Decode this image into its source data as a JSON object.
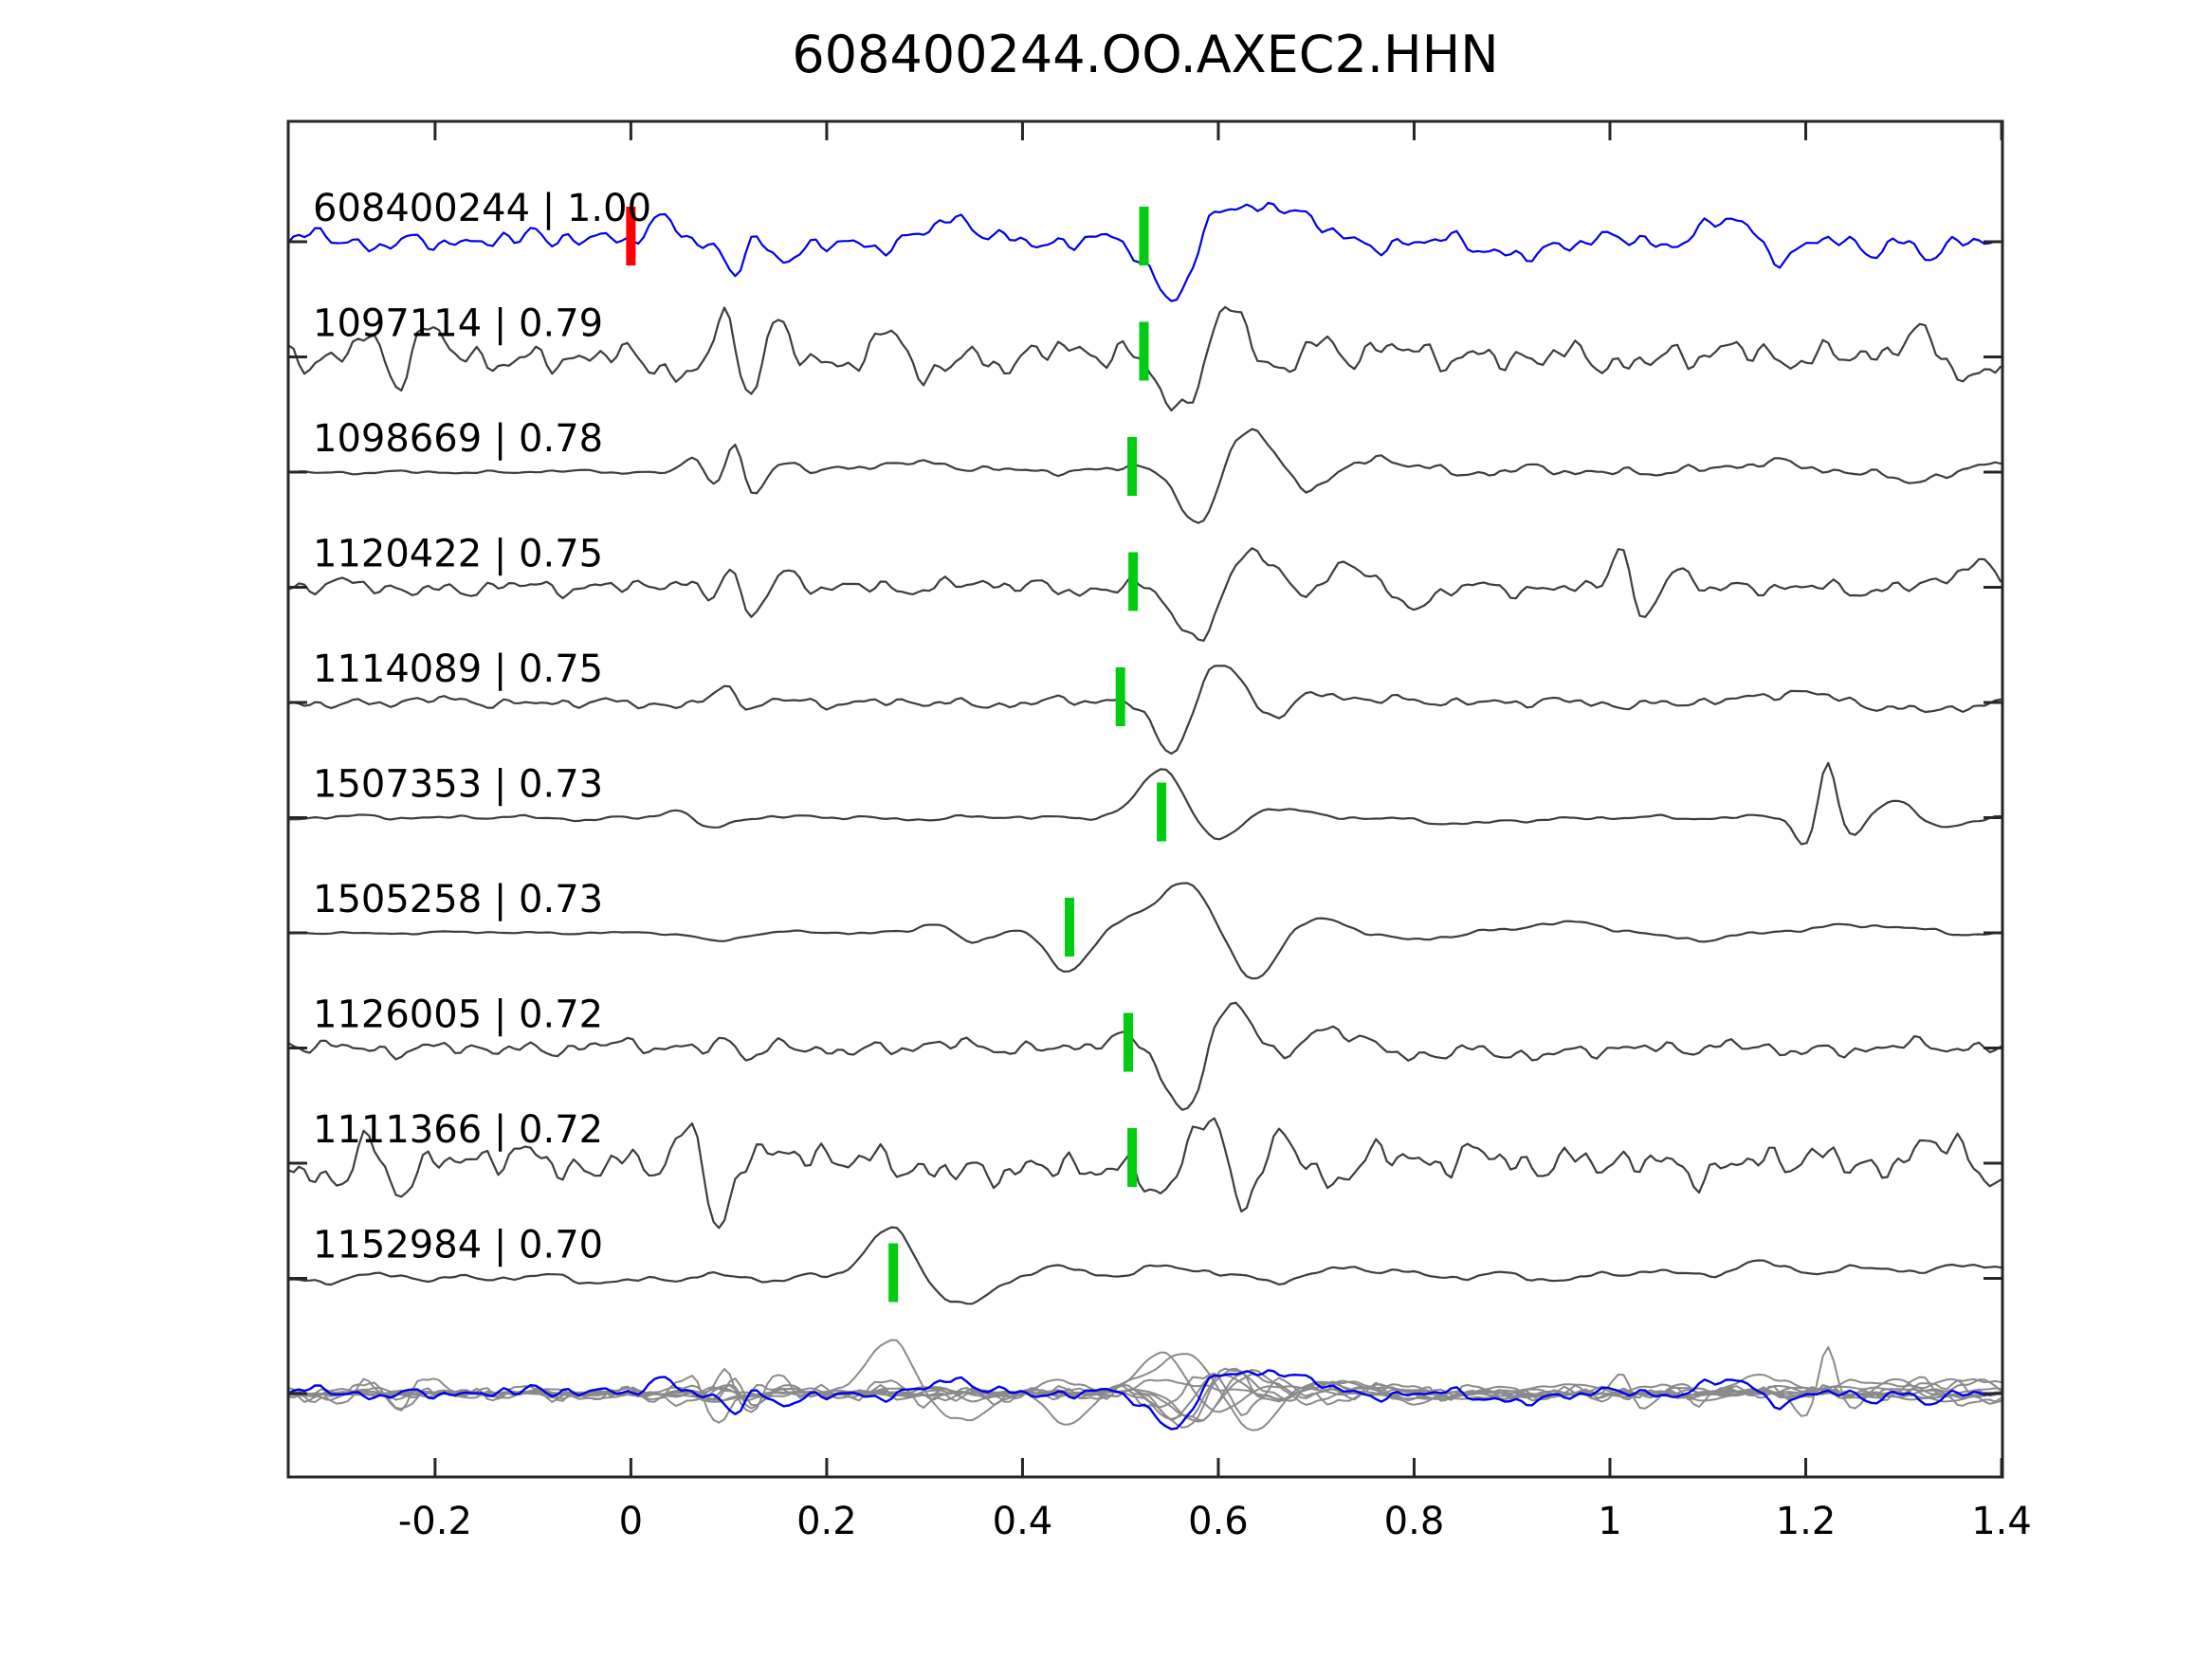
{
  "chart_data": {
    "type": "line",
    "title": "608400244.OO.AXEC2.HHN",
    "xlabel": "",
    "ylabel": "",
    "xlim": [
      -0.35,
      1.401
    ],
    "grid": false,
    "legend": "none",
    "x_ticks": [
      {
        "value": -0.2,
        "label": "-0.2"
      },
      {
        "value": 0,
        "label": "0"
      },
      {
        "value": 0.2,
        "label": "0.2"
      },
      {
        "value": 0.4,
        "label": "0.4"
      },
      {
        "value": 0.6,
        "label": "0.6"
      },
      {
        "value": 0.8,
        "label": "0.8"
      },
      {
        "value": 1,
        "label": "1"
      },
      {
        "value": 1.2,
        "label": "1.2"
      },
      {
        "value": 1.4,
        "label": "1.4"
      }
    ],
    "colors": {
      "template_trace": "#0000ee",
      "detection_trace": "#3d3d3d",
      "overlay_trace": "#8a8a8a",
      "pick_marker": "#00cc11",
      "origin_marker": "#ff0000",
      "axis": "#262626",
      "text": "#000000"
    },
    "traces": [
      {
        "id": "608400244",
        "cc": "1.00",
        "label": "608400244 | 1.00",
        "color": "#0000ee",
        "is_template": true,
        "pick_x": 0.524,
        "origin_marker_x": 0.0,
        "seed": 11,
        "noise": 10,
        "hf": 0.9,
        "overlay_scale": 0.6,
        "events": [
          [
            -0.1,
            26,
            0.012
          ],
          [
            0.035,
            20,
            0.02
          ],
          [
            0.107,
            -30,
            0.013
          ],
          [
            0.155,
            -18,
            0.02
          ],
          [
            0.335,
            20,
            0.03
          ],
          [
            0.555,
            -58,
            0.028
          ],
          [
            0.605,
            42,
            0.028
          ],
          [
            0.655,
            24,
            0.03
          ],
          [
            0.7,
            22,
            0.035
          ],
          [
            0.75,
            -10,
            0.03
          ],
          [
            0.92,
            -14,
            0.03
          ],
          [
            1.13,
            24,
            0.035
          ],
          [
            1.175,
            -26,
            0.028
          ],
          [
            1.22,
            14,
            0.03
          ],
          [
            1.27,
            -16,
            0.02
          ],
          [
            1.33,
            -14,
            0.02
          ]
        ]
      },
      {
        "id": "1097114",
        "cc": "0.79",
        "label": "1097114 | 0.79",
        "color": "#3d3d3d",
        "is_template": false,
        "pick_x": 0.524,
        "seed": 22,
        "noise": 14,
        "hf": 1,
        "overlay_scale": 0.5,
        "events": [
          [
            -0.27,
            25,
            0.015
          ],
          [
            -0.24,
            -28,
            0.015
          ],
          [
            -0.21,
            22,
            0.015
          ],
          [
            0.055,
            -25,
            0.015
          ],
          [
            0.1,
            42,
            0.016
          ],
          [
            0.12,
            -52,
            0.016
          ],
          [
            0.145,
            30,
            0.015
          ],
          [
            0.27,
            30,
            0.018
          ],
          [
            0.3,
            -25,
            0.018
          ],
          [
            0.56,
            -52,
            0.025
          ],
          [
            0.615,
            46,
            0.028
          ],
          [
            0.66,
            -18,
            0.025
          ],
          [
            0.7,
            18,
            0.03
          ],
          [
            1.32,
            24,
            0.03
          ],
          [
            1.37,
            -18,
            0.025
          ]
        ]
      },
      {
        "id": "1098669",
        "cc": "0.78",
        "label": "1098669 | 0.78",
        "color": "#3d3d3d",
        "is_template": false,
        "pick_x": 0.512,
        "seed": 33,
        "noise": 5,
        "hf": 0.7,
        "overlay_scale": 0.55,
        "env": [
          [
            -0.35,
            0.4
          ],
          [
            0.05,
            0.4
          ],
          [
            0.13,
            0.9
          ],
          [
            0.55,
            0.9
          ],
          [
            0.65,
            1.4
          ],
          [
            1.4,
            1.2
          ]
        ],
        "events": [
          [
            0.065,
            18,
            0.015
          ],
          [
            0.085,
            -16,
            0.015
          ],
          [
            0.105,
            32,
            0.012
          ],
          [
            0.125,
            -26,
            0.014
          ],
          [
            0.16,
            12,
            0.02
          ],
          [
            0.3,
            8,
            0.08
          ],
          [
            0.52,
            9,
            0.04
          ],
          [
            0.578,
            -62,
            0.027
          ],
          [
            0.633,
            46,
            0.033
          ],
          [
            0.69,
            -16,
            0.04
          ],
          [
            0.77,
            14,
            0.05
          ],
          [
            1.16,
            14,
            0.045
          ],
          [
            1.3,
            -8,
            0.05
          ],
          [
            1.4,
            10,
            0.03
          ]
        ]
      },
      {
        "id": "1120422",
        "cc": "0.75",
        "label": "1120422 | 0.75",
        "color": "#3d3d3d",
        "is_template": false,
        "pick_x": 0.513,
        "seed": 44,
        "noise": 8,
        "hf": 0.95,
        "overlay_scale": 0.5,
        "events": [
          [
            0.08,
            -15,
            0.015
          ],
          [
            0.1,
            26,
            0.014
          ],
          [
            0.125,
            -28,
            0.015
          ],
          [
            0.155,
            15,
            0.02
          ],
          [
            0.578,
            -58,
            0.027
          ],
          [
            0.638,
            44,
            0.032
          ],
          [
            0.685,
            -22,
            0.03
          ],
          [
            0.735,
            28,
            0.035
          ],
          [
            0.79,
            -18,
            0.035
          ],
          [
            1.01,
            42,
            0.013
          ],
          [
            1.035,
            -44,
            0.015
          ],
          [
            1.07,
            18,
            0.02
          ],
          [
            1.375,
            22,
            0.03
          ],
          [
            1.41,
            -10,
            0.02
          ]
        ]
      },
      {
        "id": "1114089",
        "cc": "0.75",
        "label": "1114089 | 0.75",
        "color": "#3d3d3d",
        "is_template": false,
        "pick_x": 0.5,
        "seed": 55,
        "noise": 5.5,
        "hf": 0.85,
        "overlay_scale": 0.5,
        "events": [
          [
            0.1,
            20,
            0.013
          ],
          [
            0.12,
            -13,
            0.013
          ],
          [
            0.552,
            -52,
            0.024
          ],
          [
            0.605,
            40,
            0.03
          ],
          [
            0.655,
            -18,
            0.03
          ],
          [
            0.7,
            13,
            0.04
          ],
          [
            1.19,
            12,
            0.04
          ],
          [
            1.3,
            -8,
            0.05
          ]
        ]
      },
      {
        "id": "1507353",
        "cc": "0.73",
        "label": "1507353 | 0.73",
        "color": "#3d3d3d",
        "is_template": false,
        "pick_x": 0.542,
        "seed": 66,
        "noise": 3.2,
        "hf": 0.5,
        "overlay_scale": 0.85,
        "events": [
          [
            0.05,
            8,
            0.02
          ],
          [
            0.08,
            -14,
            0.02
          ],
          [
            0.545,
            52,
            0.033
          ],
          [
            0.597,
            -28,
            0.033
          ],
          [
            0.65,
            12,
            0.04
          ],
          [
            0.85,
            -8,
            0.05
          ],
          [
            1.2,
            -32,
            0.015
          ],
          [
            1.222,
            62,
            0.012
          ],
          [
            1.247,
            -20,
            0.015
          ],
          [
            1.29,
            20,
            0.025
          ],
          [
            1.34,
            -10,
            0.03
          ]
        ]
      },
      {
        "id": "1505258",
        "cc": "0.73",
        "label": "1505258 | 0.73",
        "color": "#3d3d3d",
        "is_template": false,
        "pick_x": 0.448,
        "seed": 77,
        "noise": 3.5,
        "hf": 0.5,
        "overlay_scale": 0.8,
        "env": [
          [
            -0.35,
            0.5
          ],
          [
            0.15,
            0.5
          ],
          [
            0.3,
            1
          ],
          [
            1.4,
            1
          ]
        ],
        "events": [
          [
            0.09,
            -8,
            0.03
          ],
          [
            0.31,
            10,
            0.025
          ],
          [
            0.35,
            -12,
            0.025
          ],
          [
            0.4,
            9,
            0.03
          ],
          [
            0.445,
            -42,
            0.03
          ],
          [
            0.5,
            10,
            0.025
          ],
          [
            0.565,
            55,
            0.038
          ],
          [
            0.635,
            -52,
            0.033
          ],
          [
            0.705,
            16,
            0.045
          ],
          [
            0.8,
            -8,
            0.05
          ],
          [
            0.95,
            10,
            0.06
          ],
          [
            1.1,
            -6,
            0.05
          ],
          [
            1.25,
            8,
            0.06
          ]
        ]
      },
      {
        "id": "1126005",
        "cc": "0.72",
        "label": "1126005 | 0.72",
        "color": "#3d3d3d",
        "is_template": false,
        "pick_x": 0.508,
        "seed": 88,
        "noise": 7.5,
        "hf": 0.95,
        "overlay_scale": 0.55,
        "events": [
          [
            0.1,
            12,
            0.015
          ],
          [
            0.12,
            -10,
            0.015
          ],
          [
            0.5,
            10,
            0.03
          ],
          [
            0.565,
            -64,
            0.025
          ],
          [
            0.617,
            46,
            0.03
          ],
          [
            0.663,
            -20,
            0.028
          ],
          [
            0.72,
            22,
            0.045
          ],
          [
            0.79,
            -12,
            0.04
          ],
          [
            0.95,
            -8,
            0.05
          ]
        ]
      },
      {
        "id": "1111366",
        "cc": "0.72",
        "label": "1111366 | 0.72",
        "color": "#3d3d3d",
        "is_template": false,
        "pick_x": 0.512,
        "seed": 99,
        "noise": 16,
        "hf": 1,
        "overlay_scale": 0.45,
        "events": [
          [
            -0.3,
            -30,
            0.015
          ],
          [
            -0.27,
            22,
            0.015
          ],
          [
            -0.24,
            -20,
            0.015
          ],
          [
            0.06,
            45,
            0.014
          ],
          [
            0.09,
            -70,
            0.016
          ],
          [
            0.125,
            28,
            0.016
          ],
          [
            0.35,
            -15,
            0.03
          ],
          [
            0.515,
            -20,
            0.02
          ],
          [
            0.545,
            -40,
            0.02
          ],
          [
            0.585,
            52,
            0.024
          ],
          [
            0.625,
            -45,
            0.02
          ],
          [
            0.665,
            32,
            0.025
          ],
          [
            0.705,
            -28,
            0.025
          ],
          [
            0.76,
            18,
            0.03
          ],
          [
            1.35,
            26,
            0.025
          ],
          [
            1.385,
            -22,
            0.02
          ]
        ]
      },
      {
        "id": "1152984",
        "cc": "0.70",
        "label": "1152984 | 0.70",
        "color": "#3d3d3d",
        "is_template": false,
        "pick_x": 0.268,
        "seed": 110,
        "noise": 7,
        "hf": 0.35,
        "overlay_scale": 1.05,
        "events": [
          [
            0.265,
            52,
            0.033
          ],
          [
            0.345,
            -26,
            0.04
          ],
          [
            0.43,
            10,
            0.05
          ],
          [
            0.56,
            9,
            0.06
          ],
          [
            0.75,
            10,
            0.06
          ],
          [
            1.02,
            8,
            0.05
          ],
          [
            1.15,
            16,
            0.045
          ],
          [
            1.28,
            14,
            0.04
          ],
          [
            1.37,
            16,
            0.04
          ]
        ]
      }
    ],
    "overlay_row": {
      "has_template_trace": true,
      "gray_color": "#8a8a8a",
      "template_color": "#0000ee"
    }
  }
}
